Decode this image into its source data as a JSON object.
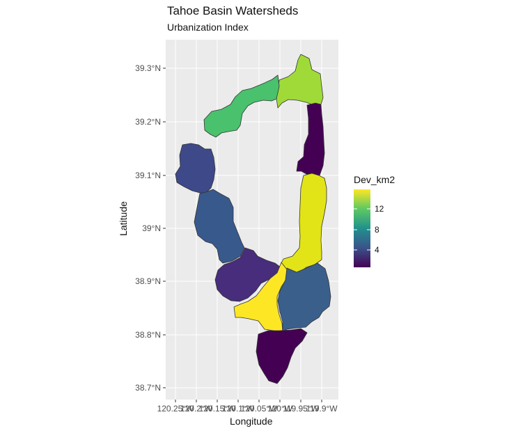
{
  "title": "Tahoe Basin Watersheds",
  "subtitle": "Urbanization Index",
  "axes": {
    "x_label": "Longitude",
    "y_label": "Latitude",
    "x_ticks": [
      "120.25°W",
      "120.2°W",
      "120.15°W",
      "120.1°W",
      "120.05°W",
      "120°W",
      "119.95°W",
      "119.9°W"
    ],
    "y_ticks": [
      "39.3°N",
      "39.2°N",
      "39.1°N",
      "39°N",
      "38.9°N",
      "38.8°N",
      "38.7°N"
    ]
  },
  "legend": {
    "title": "Dev_km2",
    "breaks": [
      "12",
      "8",
      "4"
    ],
    "colors": [
      "#440154",
      "#3b528b",
      "#21918c",
      "#5ec962",
      "#fde725"
    ]
  },
  "colors": {
    "panel_bg": "#ebebeb",
    "grid": "#ffffff",
    "border": "#333333"
  }
}
